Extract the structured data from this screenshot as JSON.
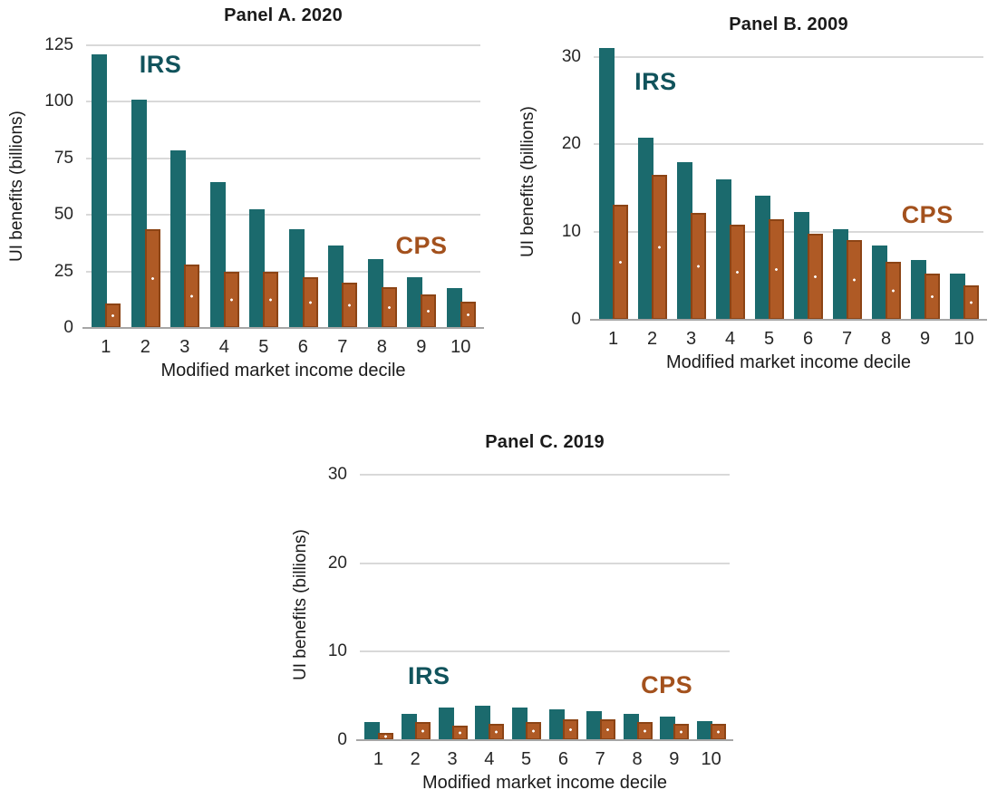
{
  "figure_background": "#ffffff",
  "colors": {
    "irs_bar": "#1b6a6d",
    "cps_bar_fill": "#af5a25",
    "cps_bar_border": "#8c4415",
    "cps_bar_dot": "#ffffff",
    "irs_label_text": "#11535c",
    "cps_label_text": "#a3511d",
    "gridline": "#d9d9d9",
    "axis_line": "#a6a6a6",
    "tick_text": "#262626",
    "title_text": "#1a1a1a"
  },
  "chart_data": [
    {
      "type": "bar",
      "title": "Panel A. 2020",
      "xlabel": "Modified market income decile",
      "ylabel": "UI benefits (billions)",
      "categories": [
        "1",
        "2",
        "3",
        "4",
        "5",
        "6",
        "7",
        "8",
        "9",
        "10"
      ],
      "yticks": [
        0,
        25,
        50,
        75,
        100,
        125
      ],
      "ylim": [
        0,
        125
      ],
      "grid": true,
      "legend_position": "in-plot annotations",
      "series": [
        {
          "name": "IRS",
          "values": [
            121,
            101,
            78.5,
            64.5,
            52.5,
            43.5,
            36.5,
            30.5,
            22.5,
            17.5
          ]
        },
        {
          "name": "CPS",
          "values": [
            11,
            43.5,
            28,
            25,
            25,
            22.5,
            20,
            18,
            15,
            11.5
          ]
        }
      ],
      "annotations": [
        {
          "text": "IRS",
          "series": "IRS",
          "x": 0.135,
          "y": 0.02
        },
        {
          "text": "CPS",
          "series": "CPS",
          "x": 0.785,
          "y": 0.66
        }
      ]
    },
    {
      "type": "bar",
      "title": "Panel B. 2009",
      "xlabel": "Modified market income decile",
      "ylabel": "UI benefits (billions)",
      "categories": [
        "1",
        "2",
        "3",
        "4",
        "5",
        "6",
        "7",
        "8",
        "9",
        "10"
      ],
      "yticks": [
        0,
        10,
        20,
        30
      ],
      "ylim": [
        0,
        31.5
      ],
      "grid": true,
      "legend_position": "in-plot annotations",
      "series": [
        {
          "name": "IRS",
          "values": [
            31,
            20.8,
            18,
            16,
            14.1,
            12.3,
            10.3,
            8.5,
            6.8,
            5.3
          ]
        },
        {
          "name": "CPS",
          "values": [
            13.1,
            16.5,
            12.2,
            10.8,
            11.5,
            9.8,
            9.1,
            6.6,
            5.3,
            3.9
          ]
        }
      ],
      "annotations": [
        {
          "text": "IRS",
          "series": "IRS",
          "x": 0.105,
          "y": 0.09
        },
        {
          "text": "CPS",
          "series": "CPS",
          "x": 0.79,
          "y": 0.57
        }
      ]
    },
    {
      "type": "bar",
      "title": "Panel C. 2019",
      "xlabel": "Modified market income decile",
      "ylabel": "UI benefits (billions)",
      "categories": [
        "1",
        "2",
        "3",
        "4",
        "5",
        "6",
        "7",
        "8",
        "9",
        "10"
      ],
      "yticks": [
        0,
        10,
        20,
        30
      ],
      "ylim": [
        0,
        30.5
      ],
      "grid": true,
      "legend_position": "in-plot annotations",
      "series": [
        {
          "name": "IRS",
          "values": [
            2.0,
            3.0,
            3.7,
            3.9,
            3.7,
            3.5,
            3.3,
            3.0,
            2.7,
            2.1
          ]
        },
        {
          "name": "CPS",
          "values": [
            0.8,
            2.0,
            1.6,
            1.8,
            2.0,
            2.4,
            2.4,
            2.0,
            1.8,
            1.8
          ]
        }
      ],
      "annotations": [
        {
          "text": "IRS",
          "series": "IRS",
          "x": 0.13,
          "y": 0.71
        },
        {
          "text": "CPS",
          "series": "CPS",
          "x": 0.76,
          "y": 0.745
        }
      ]
    }
  ]
}
